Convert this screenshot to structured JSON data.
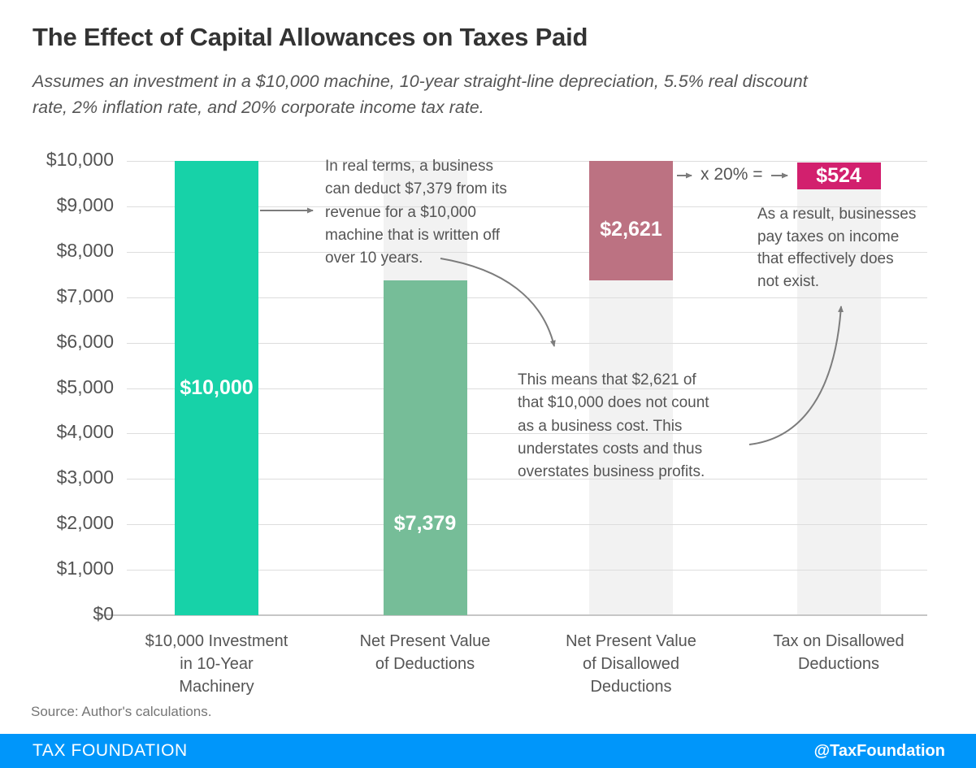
{
  "header": {
    "title": "The Effect of Capital Allowances on Taxes Paid",
    "subtitle": "Assumes an investment in a $10,000 machine, 10-year straight-line depreciation, 5.5% real discount\nrate, 2% inflation rate, and 20% corporate income tax rate."
  },
  "chart_data": {
    "type": "bar",
    "title": "The Effect of Capital Allowances on Taxes Paid",
    "categories": [
      "$10,000 Investment\nin 10-Year\nMachinery",
      "Net Present Value\nof Deductions",
      "Net Present Value\nof Disallowed\nDeductions",
      "Tax on Disallowed\nDeductions"
    ],
    "values": [
      10000,
      7379,
      2621,
      524
    ],
    "bar_labels": [
      "$10,000",
      "$7,379",
      "$2,621",
      "$524"
    ],
    "bar_colors": [
      "#17D2A8",
      "#76BD98",
      "#BC7282",
      "#D2206E"
    ],
    "bar_anchor": [
      "bottom",
      "bottom",
      "top",
      "top"
    ],
    "xlabel": "",
    "ylabel": "",
    "ylim": [
      0,
      10000
    ],
    "yticks": [
      "$10,000",
      "$9,000",
      "$8,000",
      "$7,000",
      "$6,000",
      "$5,000",
      "$4,000",
      "$3,000",
      "$2,000",
      "$1,000",
      "$0"
    ],
    "grid": true,
    "legend": "none",
    "track_color": "#F2F2F2",
    "gridline_color": "#DDDDDD",
    "axis_line_color": "#C6C6C6"
  },
  "annotations": {
    "deduct": "In real terms, a business\ncan deduct $7,379 from its\nrevenue for a $10,000\nmachine that is written off\nover 10 years.",
    "not_count": "This means that $2,621 of\nthat $10,000 does not count\nas a business cost. This\nunderstates costs and thus\noverstates business profits.",
    "result": "As a result, businesses\npay taxes on income\nthat effectively does\nnot exist.",
    "multiply": "x 20% ="
  },
  "footer": {
    "source": "Source: Author's calculations.",
    "brand": "TAX FOUNDATION",
    "handle": "@TaxFoundation",
    "bar_color": "#0096FA"
  }
}
